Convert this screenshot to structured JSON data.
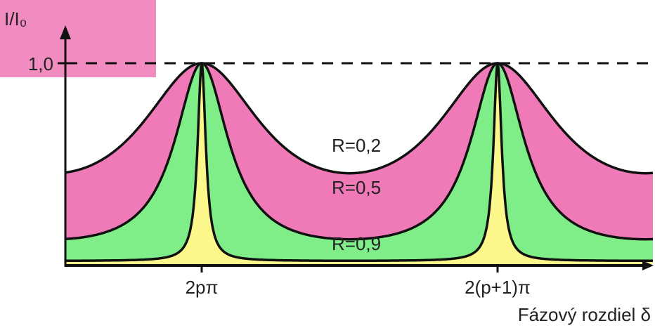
{
  "chart_data": {
    "type": "line",
    "title": "",
    "ylabel": "I/I₀",
    "xlabel": "Fázový rozdiel δ",
    "y_tick_labels": [
      "1,0"
    ],
    "x_tick_labels": [
      "2pπ",
      "2(p+1)π"
    ],
    "x_tick_values": [
      0,
      1
    ],
    "xlim": [
      -0.53,
      1.5
    ],
    "ylim": [
      0,
      1.0
    ],
    "reference_line": {
      "y": 1.0,
      "style": "dashed"
    },
    "series": [
      {
        "name": "R=0,2",
        "color": "#f07ab8",
        "F": 1.25,
        "min": 0.444
      },
      {
        "name": "R=0,5",
        "color": "#80ee88",
        "F": 8.0,
        "min": 0.111
      },
      {
        "name": "R=0,9",
        "color": "#fbf78a",
        "F": 360,
        "min": 0.003
      }
    ]
  }
}
